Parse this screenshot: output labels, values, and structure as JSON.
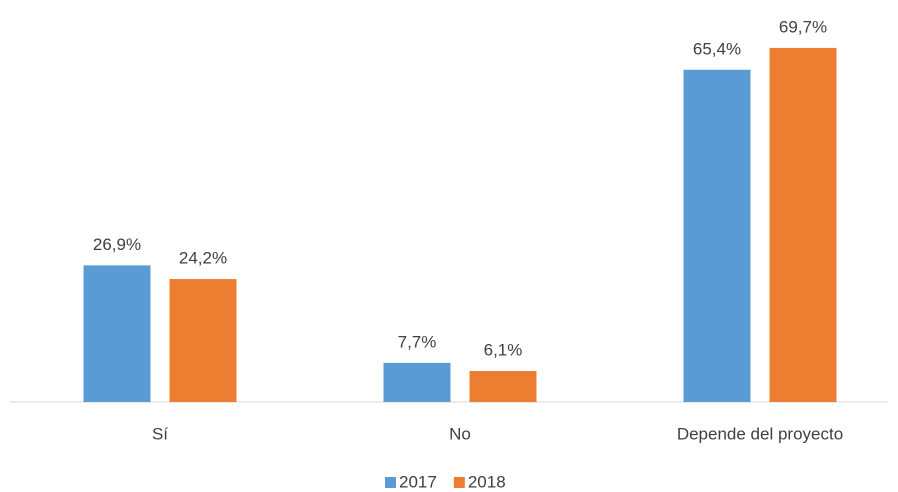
{
  "chart_data": {
    "type": "bar",
    "categories": [
      "Sí",
      "No",
      "Depende del proyecto"
    ],
    "series": [
      {
        "name": "2017",
        "color": "#5b9bd5",
        "values": [
          26.9,
          7.7,
          65.4
        ],
        "value_labels": [
          "26,9%",
          "7,7%",
          "65,4%"
        ]
      },
      {
        "name": "2018",
        "color": "#ed7d31",
        "values": [
          24.2,
          6.1,
          69.7
        ],
        "value_labels": [
          "24,2%",
          "6,1%",
          "69,7%"
        ]
      }
    ],
    "ylim": [
      0,
      75
    ],
    "legend": "bottom"
  }
}
